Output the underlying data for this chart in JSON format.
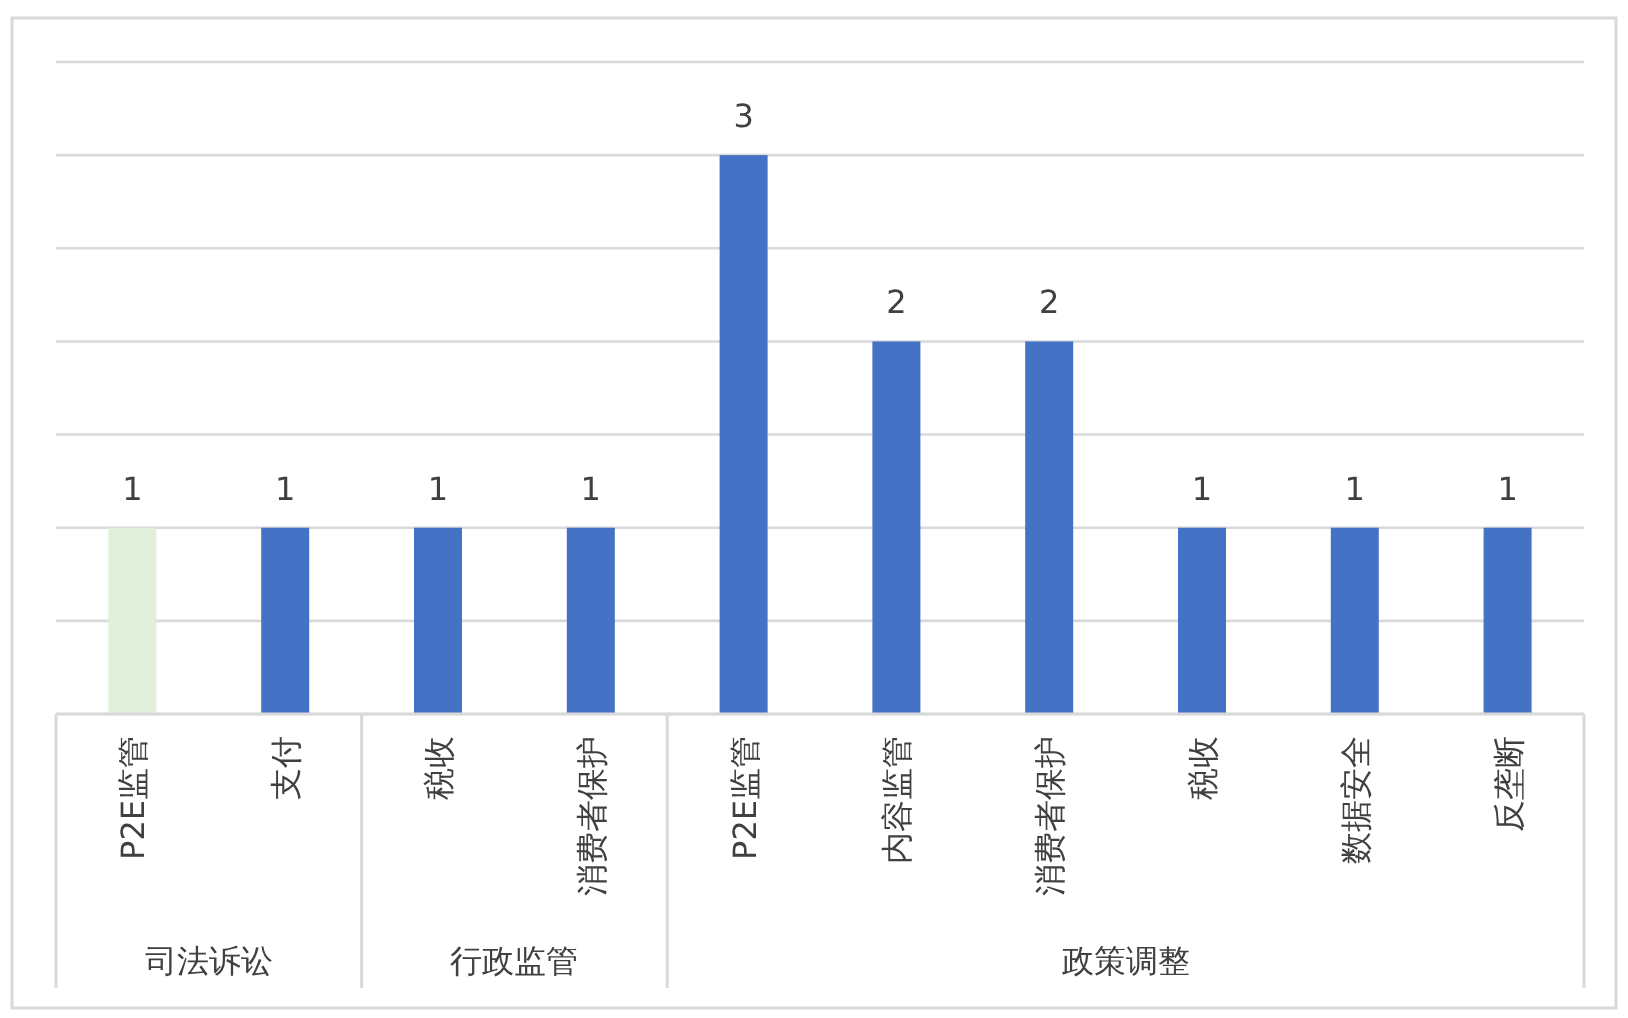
{
  "chart_data": {
    "type": "bar",
    "categories": [
      "P2E监管",
      "支付",
      "税收",
      "消费者保护",
      "P2E监管",
      "内容监管",
      "消费者保护",
      "税收",
      "数据安全",
      "反垄断"
    ],
    "values": [
      1,
      1,
      1,
      1,
      3,
      2,
      2,
      1,
      1,
      1
    ],
    "colors": [
      "#e2efda",
      "#4472c4",
      "#4472c4",
      "#4472c4",
      "#4472c4",
      "#4472c4",
      "#4472c4",
      "#4472c4",
      "#4472c4",
      "#4472c4"
    ],
    "ylim": [
      0,
      3.5
    ],
    "yticks": [
      {
        "value": 0,
        "label": null
      },
      {
        "value": 0.5,
        "label": null
      },
      {
        "value": 1,
        "label": null
      },
      {
        "value": 1.5,
        "label": null
      },
      {
        "value": 2,
        "label": null
      },
      {
        "value": 2.5,
        "label": null
      },
      {
        "value": 3,
        "label": null
      },
      {
        "value": 3.5,
        "label": null
      }
    ],
    "grid": "y",
    "tick_labels": "x",
    "data_labels": true,
    "annotations": [
      "司法诉讼",
      "行政监管",
      "政策调整"
    ]
  }
}
